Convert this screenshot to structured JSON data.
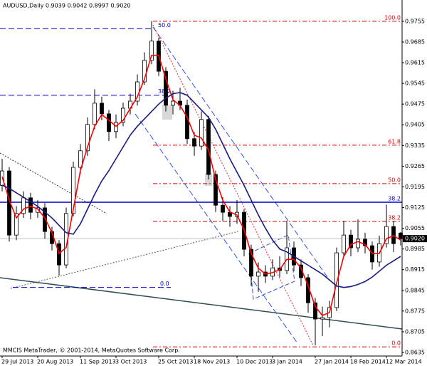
{
  "chart_data": {
    "type": "candlestick",
    "title": "AUDUSD,Daily  0.9039 0.9042 0.8997 0.9020",
    "footer": "MMCIS MetaTrader, © 2001-2014, MetaQuotes Software Corp.",
    "categories": [
      "29 Jul 2013",
      null,
      null,
      null,
      null,
      "20 Aug 2013",
      null,
      null,
      null,
      null,
      null,
      "11 Sep 2013",
      null,
      null,
      null,
      null,
      "3 Oct 2013",
      null,
      null,
      null,
      null,
      null,
      "25 Oct 2013",
      null,
      null,
      null,
      null,
      "18 Nov 2013",
      null,
      null,
      null,
      null,
      null,
      "10 Dec 2013",
      null,
      null,
      null,
      null,
      "3 Jan 2014",
      null,
      null,
      null,
      null,
      null,
      "27 Jan 2014",
      null,
      null,
      null,
      null,
      "18 Feb 2014",
      null,
      null,
      null,
      null,
      "12 Mar 2014",
      null,
      null
    ],
    "open": [
      0.92,
      0.9249,
      0.9032,
      0.9105,
      0.9158,
      0.9109,
      0.9124,
      0.9044,
      0.9003,
      0.8931,
      0.9105,
      0.9261,
      0.9317,
      0.9406,
      0.9478,
      0.9442,
      0.9382,
      0.9413,
      0.9461,
      0.9485,
      0.955,
      0.9623,
      0.9688,
      0.9586,
      0.9471,
      0.9485,
      0.9471,
      0.9358,
      0.9333,
      0.9423,
      0.9237,
      0.9133,
      0.9109,
      0.9095,
      0.9109,
      0.8984,
      0.8893,
      0.8907,
      0.8893,
      0.8921,
      0.8912,
      0.8989,
      0.8931,
      0.8888,
      0.8803,
      0.8748,
      0.8753,
      0.8787,
      0.8972,
      0.9032,
      0.8989,
      0.9018,
      0.8996,
      0.8941,
      0.9003,
      0.9061,
      0.9039
    ],
    "high": [
      0.929,
      0.9262,
      0.913,
      0.918,
      0.9175,
      0.915,
      0.914,
      0.906,
      0.9015,
      0.9125,
      0.928,
      0.934,
      0.943,
      0.9525,
      0.95,
      0.9455,
      0.944,
      0.948,
      0.951,
      0.9575,
      0.965,
      0.9756,
      0.97,
      0.96,
      0.952,
      0.953,
      0.949,
      0.938,
      0.945,
      0.9435,
      0.925,
      0.916,
      0.913,
      0.915,
      0.912,
      0.9,
      0.894,
      0.893,
      0.895,
      0.896,
      0.908,
      0.901,
      0.895,
      0.89,
      0.882,
      0.879,
      0.881,
      0.899,
      0.908,
      0.905,
      0.9085,
      0.904,
      0.901,
      0.903,
      0.9135,
      0.908,
      0.9042
    ],
    "low": [
      0.918,
      0.901,
      0.9015,
      0.909,
      0.9085,
      0.909,
      0.902,
      0.898,
      0.8895,
      0.892,
      0.9095,
      0.924,
      0.93,
      0.939,
      0.942,
      0.935,
      0.936,
      0.94,
      0.944,
      0.947,
      0.954,
      0.961,
      0.957,
      0.945,
      0.944,
      0.9455,
      0.934,
      0.93,
      0.932,
      0.922,
      0.911,
      0.908,
      0.906,
      0.907,
      0.896,
      0.886,
      0.884,
      0.887,
      0.888,
      0.889,
      0.89,
      0.891,
      0.886,
      0.877,
      0.866,
      0.869,
      0.872,
      0.8775,
      0.896,
      0.896,
      0.8975,
      0.897,
      0.8915,
      0.8925,
      0.899,
      0.8975,
      0.8997
    ],
    "close": [
      0.9249,
      0.9032,
      0.9105,
      0.9158,
      0.9109,
      0.9124,
      0.9044,
      0.9003,
      0.8931,
      0.9105,
      0.9261,
      0.9317,
      0.9406,
      0.9478,
      0.9442,
      0.9382,
      0.9413,
      0.9461,
      0.9485,
      0.955,
      0.9623,
      0.9688,
      0.9586,
      0.9471,
      0.9485,
      0.9471,
      0.9358,
      0.9333,
      0.9423,
      0.9237,
      0.9133,
      0.9109,
      0.9095,
      0.9109,
      0.8984,
      0.8893,
      0.8907,
      0.8893,
      0.8921,
      0.8912,
      0.8989,
      0.8931,
      0.8888,
      0.8803,
      0.8748,
      0.8753,
      0.8787,
      0.8972,
      0.9032,
      0.8989,
      0.9018,
      0.8996,
      0.8941,
      0.9003,
      0.9061,
      0.9003,
      0.902
    ],
    "up_color": "#ffffff",
    "down_color": "#000000",
    "lines": [
      {
        "color": "#ff0000",
        "values": [
          0.923,
          0.915,
          0.909,
          0.912,
          0.913,
          0.912,
          0.909,
          0.904,
          0.897,
          0.899,
          0.912,
          0.925,
          0.933,
          0.94,
          0.944,
          0.942,
          0.94,
          0.942,
          0.946,
          0.95,
          0.956,
          0.964,
          0.964,
          0.956,
          0.949,
          0.947,
          0.943,
          0.937,
          0.936,
          0.932,
          0.922,
          0.915,
          0.911,
          0.91,
          0.905,
          0.897,
          0.892,
          0.89,
          0.8905,
          0.8915,
          0.895,
          0.895,
          0.892,
          0.886,
          0.879,
          0.876,
          0.877,
          0.887,
          0.896,
          0.9,
          0.901,
          0.9,
          0.897,
          0.897,
          0.902,
          0.903,
          0.9015
        ]
      },
      {
        "color": "#1a1a80",
        "values": [
          0.9201,
          0.919,
          0.9175,
          0.916,
          0.9145,
          0.9129,
          0.911,
          0.909,
          0.9065,
          0.904,
          0.9035,
          0.907,
          0.912,
          0.917,
          0.9215,
          0.925,
          0.929,
          0.933,
          0.937,
          0.94,
          0.9425,
          0.945,
          0.9475,
          0.9495,
          0.951,
          0.9514,
          0.9505,
          0.948,
          0.9455,
          0.943,
          0.939,
          0.934,
          0.929,
          0.9245,
          0.92,
          0.915,
          0.91,
          0.9055,
          0.9015,
          0.8985,
          0.8975,
          0.896,
          0.8945,
          0.893,
          0.8915,
          0.89,
          0.888,
          0.886,
          0.8855,
          0.8858,
          0.8865,
          0.8875,
          0.889,
          0.891,
          0.893,
          0.8945,
          0.896
        ]
      }
    ],
    "fib_levels": [
      {
        "label": "100.0",
        "value": 0.9755,
        "color": "#dd0000"
      },
      {
        "label": "61.8",
        "value": 0.9336,
        "color": "#dd0000"
      },
      {
        "label": "50.0",
        "value": 0.9206,
        "color": "#dd0000"
      },
      {
        "label": "38.2",
        "value": 0.9078,
        "color": "#dd0000"
      },
      {
        "label": "0.0",
        "value": 0.8654,
        "color": "#dd0000"
      },
      {
        "label": "50.0",
        "value": 0.973,
        "color": "#0000cc"
      },
      {
        "label": "38.2",
        "value": 0.9505,
        "color": "#0000cc"
      },
      {
        "label": "0.0",
        "value": 0.8855,
        "color": "#0000cc"
      },
      {
        "label": "38.2",
        "value": 0.9143,
        "color": "#0000cc"
      }
    ],
    "current_price": {
      "value": 0.902,
      "label": "0.9020"
    },
    "ylim": [
      0.8623,
      0.9827
    ],
    "yticks": [
      0.9755,
      0.9685,
      0.9615,
      0.9545,
      0.9475,
      0.9405,
      0.9335,
      0.9265,
      0.9195,
      0.9125,
      0.9055,
      0.8985,
      0.8915,
      0.8845,
      0.8775,
      0.8705,
      0.8635
    ]
  }
}
